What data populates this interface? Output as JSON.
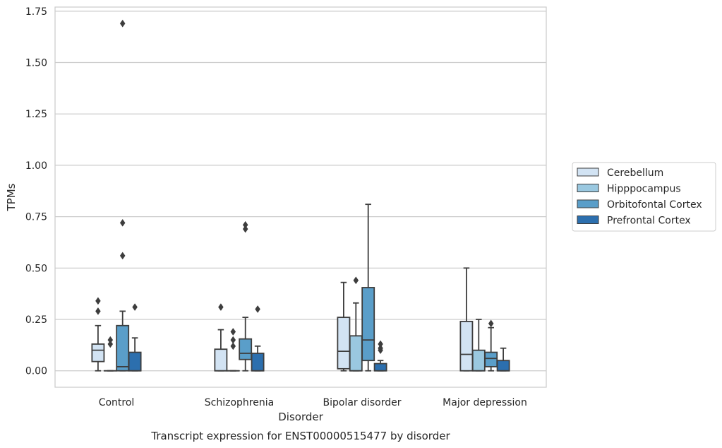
{
  "chart_data": {
    "type": "box",
    "title": "",
    "caption": "Transcript expression for ENST00000515477 by disorder",
    "xlabel": "Disorder",
    "ylabel": "TPMs",
    "ylim": [
      -0.08,
      1.77
    ],
    "yticks": [
      "0.00",
      "0.25",
      "0.50",
      "0.75",
      "1.00",
      "1.25",
      "1.50",
      "1.75"
    ],
    "ytick_values": [
      0,
      0.25,
      0.5,
      0.75,
      1.0,
      1.25,
      1.5,
      1.75
    ],
    "grid": "horizontal",
    "legend_position": "right",
    "categories": [
      "Control",
      "Schizophrenia",
      "Bipolar disorder",
      "Major depression"
    ],
    "series": [
      {
        "name": "Cerebellum",
        "color": "#d2e3f3",
        "boxes": [
          {
            "whislo": 0.0,
            "q1": 0.045,
            "med": 0.1,
            "q3": 0.13,
            "whishi": 0.22,
            "fliers": [
              0.29,
              0.34
            ]
          },
          {
            "whislo": 0.0,
            "q1": 0.0,
            "med": 0.0,
            "q3": 0.105,
            "whishi": 0.2,
            "fliers": [
              0.31
            ]
          },
          {
            "whislo": 0.0,
            "q1": 0.01,
            "med": 0.095,
            "q3": 0.26,
            "whishi": 0.43,
            "fliers": []
          },
          {
            "whislo": 0.0,
            "q1": 0.0,
            "med": 0.08,
            "q3": 0.24,
            "whishi": 0.5,
            "fliers": []
          }
        ]
      },
      {
        "name": "Hipppocampus",
        "color": "#9ac8e0",
        "boxes": [
          {
            "whislo": 0.0,
            "q1": 0.0,
            "med": 0.0,
            "q3": 0.0,
            "whishi": 0.0,
            "fliers": [
              0.13,
              0.15
            ]
          },
          {
            "whislo": 0.0,
            "q1": 0.0,
            "med": 0.0,
            "q3": 0.0,
            "whishi": 0.0,
            "fliers": [
              0.12,
              0.15,
              0.19
            ]
          },
          {
            "whislo": 0.0,
            "q1": 0.0,
            "med": 0.0,
            "q3": 0.17,
            "whishi": 0.33,
            "fliers": [
              0.44
            ]
          },
          {
            "whislo": 0.0,
            "q1": 0.0,
            "med": 0.0,
            "q3": 0.1,
            "whishi": 0.25,
            "fliers": []
          }
        ]
      },
      {
        "name": "Orbitofontal Cortex",
        "color": "#5a9ec9",
        "boxes": [
          {
            "whislo": 0.0,
            "q1": 0.0,
            "med": 0.02,
            "q3": 0.22,
            "whishi": 0.29,
            "fliers": [
              0.56,
              0.72,
              1.69
            ]
          },
          {
            "whislo": 0.0,
            "q1": 0.055,
            "med": 0.085,
            "q3": 0.155,
            "whishi": 0.26,
            "fliers": [
              0.69,
              0.71
            ]
          },
          {
            "whislo": 0.0,
            "q1": 0.05,
            "med": 0.15,
            "q3": 0.405,
            "whishi": 0.81,
            "fliers": []
          },
          {
            "whislo": 0.0,
            "q1": 0.02,
            "med": 0.06,
            "q3": 0.09,
            "whishi": 0.21,
            "fliers": [
              0.23
            ]
          }
        ]
      },
      {
        "name": "Prefrontal Cortex",
        "color": "#2c6fae",
        "boxes": [
          {
            "whislo": 0.0,
            "q1": 0.0,
            "med": 0.0,
            "q3": 0.09,
            "whishi": 0.16,
            "fliers": [
              0.31
            ]
          },
          {
            "whislo": 0.0,
            "q1": 0.0,
            "med": 0.0,
            "q3": 0.085,
            "whishi": 0.12,
            "fliers": [
              0.3
            ]
          },
          {
            "whislo": 0.0,
            "q1": 0.0,
            "med": 0.0,
            "q3": 0.035,
            "whishi": 0.05,
            "fliers": [
              0.1,
              0.11,
              0.13
            ]
          },
          {
            "whislo": 0.0,
            "q1": 0.0,
            "med": 0.0,
            "q3": 0.05,
            "whishi": 0.11,
            "fliers": []
          }
        ]
      }
    ]
  }
}
